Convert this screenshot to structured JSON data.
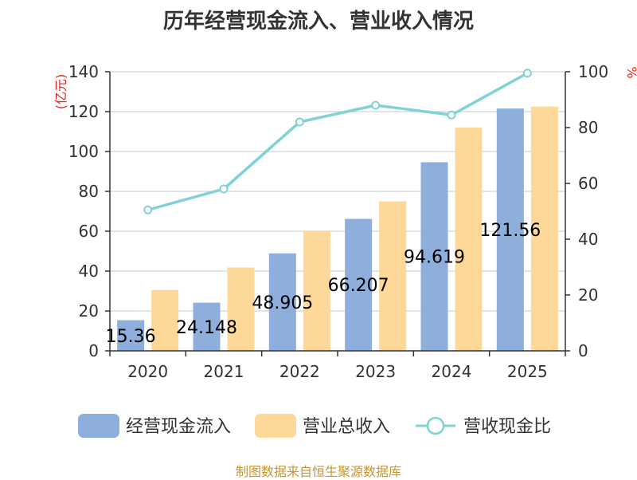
{
  "chart_data": {
    "type": "bar",
    "title": "历年经营现金流入、营业收入情况",
    "categories": [
      "2020",
      "2021",
      "2022",
      "2023",
      "2024",
      "2025"
    ],
    "series": [
      {
        "name": "经营现金流入",
        "type": "bar",
        "axis": "left",
        "color": "#8eaedc",
        "values": [
          15.36,
          24.148,
          48.905,
          66.207,
          94.619,
          121.56
        ],
        "labels": [
          "15.36",
          "24.148",
          "48.905",
          "66.207",
          "94.619",
          "121.56"
        ]
      },
      {
        "name": "营业总收入",
        "type": "bar",
        "axis": "left",
        "color": "#fdd899",
        "values": [
          30.5,
          41.8,
          60.0,
          75.0,
          112.0,
          122.5
        ]
      },
      {
        "name": "营收现金比",
        "type": "line",
        "axis": "right",
        "color": "#7fd3d5",
        "values": [
          50.5,
          58.0,
          82.0,
          88.0,
          84.5,
          99.5
        ]
      }
    ],
    "y_left": {
      "label": "(亿元)",
      "min": 0,
      "max": 140,
      "ticks": [
        0,
        20,
        40,
        60,
        80,
        100,
        120,
        140
      ]
    },
    "y_right": {
      "label": "%",
      "min": 0,
      "max": 100,
      "ticks": [
        0,
        20,
        40,
        60,
        80,
        100
      ]
    },
    "legend_position": "bottom",
    "grid": true
  },
  "footer": {
    "source": "制图数据来自恒生聚源数据库"
  }
}
